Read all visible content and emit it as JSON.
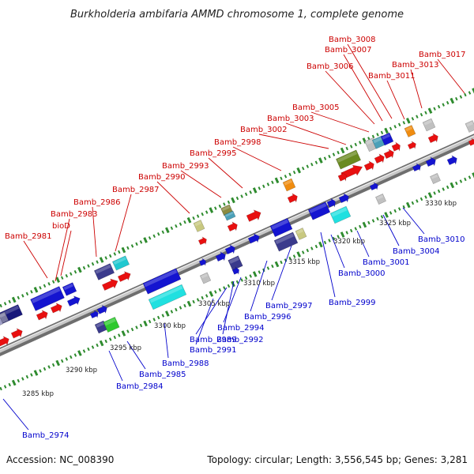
{
  "title": "Burkholderia ambifaria AMMD chromosome 1, complete genome",
  "footer": {
    "accession": "Accession: NC_008390",
    "topology": "Topology: circular; Length: 3,556,545 bp; Genes: 3,281"
  },
  "colors": {
    "forward_label": "#cc0000",
    "reverse_label": "#0000cc",
    "backbone": "#a0a0a0",
    "tick": "#2e8b2e"
  },
  "scale_labels": [
    "3285 kbp",
    "3290 kbp",
    "3295 kbp",
    "3300 kbp",
    "3305 kbp",
    "3310 kbp",
    "3315 kbp",
    "3320 kbp",
    "3325 kbp",
    "3330 kbp"
  ],
  "forward_genes": [
    "Bamb_2981",
    "Bamb_2983",
    "bioD",
    "Bamb_2986",
    "Bamb_2987",
    "Bamb_2990",
    "Bamb_2993",
    "Bamb_2995",
    "Bamb_2998",
    "Bamb_3002",
    "Bamb_3003",
    "Bamb_3005",
    "Bamb_3006",
    "Bamb_3007",
    "Bamb_3008",
    "Bamb_3011",
    "Bamb_3013",
    "Bamb_3017"
  ],
  "reverse_genes": [
    "Bamb_2974",
    "Bamb_2984",
    "Bamb_2985",
    "Bamb_2988",
    "Bamb_2989",
    "Bamb_2991",
    "Bamb_2992",
    "Bamb_2994",
    "Bamb_2996",
    "Bamb_2997",
    "Bamb_2999",
    "Bamb_3000",
    "Bamb_3001",
    "Bamb_3004",
    "Bamb_3010"
  ]
}
